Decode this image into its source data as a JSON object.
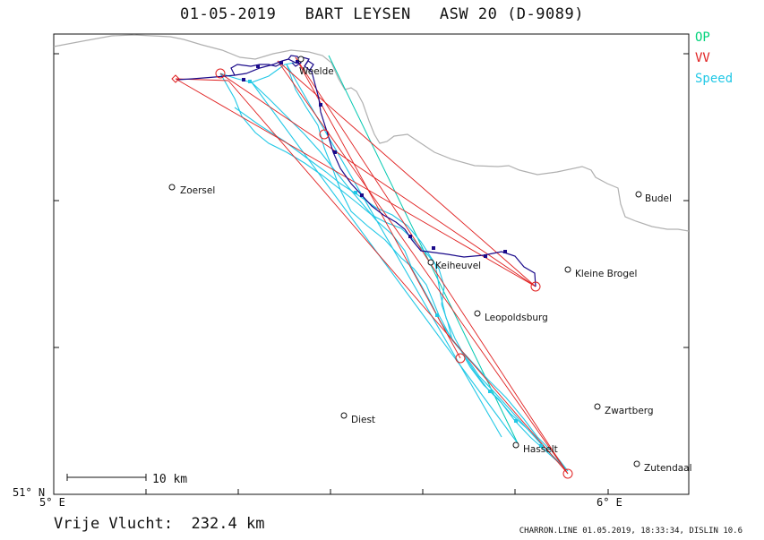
{
  "header": {
    "date": "01-05-2019",
    "pilot": "BART LEYSEN",
    "glider": "ASW 20 (D-9089)"
  },
  "legend": [
    {
      "label": "OP",
      "color": "#00d27a"
    },
    {
      "label": "VV",
      "color": "#e02020"
    },
    {
      "label": "Speed",
      "color": "#22c8e6"
    }
  ],
  "axes": {
    "lon_left": "5° E",
    "lon_right": "6° E",
    "lat_bottom": "51° N"
  },
  "scale_bar": {
    "label": "10 km"
  },
  "distance": {
    "label": "Vrije Vlucht:",
    "value": "232.4 km"
  },
  "footer": "CHARRON.LINE 01.05.2019, 18:33:34, DISLIN 10.6",
  "places": [
    {
      "name": "Weelde"
    },
    {
      "name": "Zoersel"
    },
    {
      "name": "Budel"
    },
    {
      "name": "Kleine Brogel"
    },
    {
      "name": "Keiheuvel"
    },
    {
      "name": "Leopoldsburg"
    },
    {
      "name": "Diest"
    },
    {
      "name": "Zwartberg"
    },
    {
      "name": "Hasselt"
    },
    {
      "name": "Zutendaal"
    }
  ],
  "colors": {
    "track": "#1a0a8a",
    "border": "#b0b0b0",
    "turnpoint": "#e02020",
    "op_line": "#00d27a",
    "speed": "#22c8e6"
  }
}
